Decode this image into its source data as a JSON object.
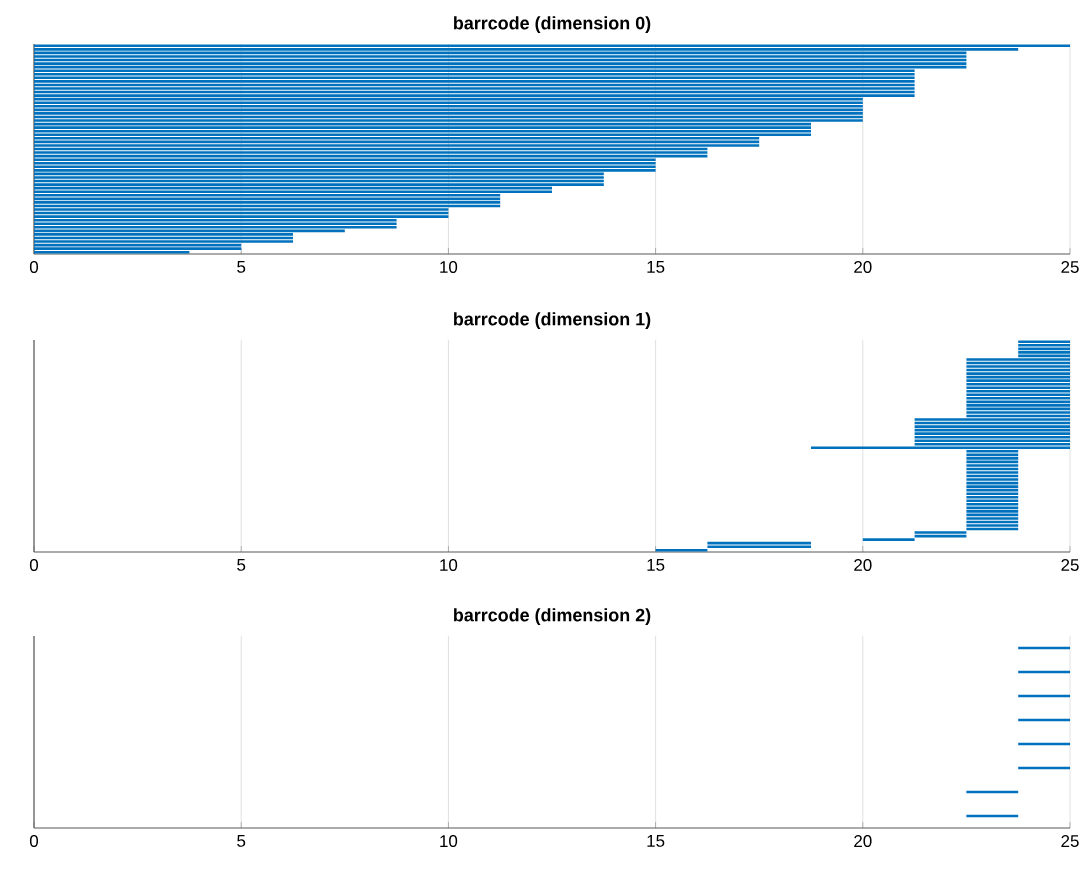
{
  "chart_data": [
    {
      "type": "bar",
      "orientation": "horizontal",
      "title": "barrcode (dimension 0)",
      "color": "#0072bd",
      "xlim": [
        0,
        25
      ],
      "xticks": [
        0,
        5,
        10,
        15,
        20,
        25
      ],
      "grid": "x",
      "tick_labels": "x",
      "categories": [
        null,
        null,
        null,
        null,
        null,
        null,
        null,
        null,
        null,
        null,
        null,
        null,
        null,
        null,
        null,
        null,
        null,
        null,
        null,
        null,
        null,
        null,
        null,
        null,
        null,
        null,
        null,
        null,
        null,
        null,
        null,
        null,
        null,
        null,
        null,
        null,
        null,
        null,
        null,
        null,
        null,
        null,
        null,
        null,
        null,
        null,
        null,
        null,
        null,
        null,
        null,
        null,
        null,
        null,
        null,
        null,
        null,
        null,
        null
      ],
      "values": [
        25,
        23.75,
        22.5,
        22.5,
        22.5,
        22.5,
        22.5,
        21.25,
        21.25,
        21.25,
        21.25,
        21.25,
        21.25,
        21.25,
        21.25,
        20,
        20,
        20,
        20,
        20,
        20,
        20,
        18.75,
        18.75,
        18.75,
        18.75,
        17.5,
        17.5,
        17.5,
        16.25,
        16.25,
        16.25,
        15,
        15,
        15,
        15,
        13.75,
        13.75,
        13.75,
        13.75,
        12.5,
        12.5,
        11.25,
        11.25,
        11.25,
        11.25,
        10,
        10,
        10,
        8.75,
        8.75,
        8.75,
        7.5,
        6.25,
        6.25,
        6.25,
        5,
        5,
        3.75
      ]
    },
    {
      "type": "bar",
      "orientation": "horizontal",
      "title": "barrcode (dimension 1)",
      "color": "#0072bd",
      "xlim": [
        0,
        25
      ],
      "xticks": [
        0,
        5,
        10,
        15,
        20,
        25
      ],
      "grid": "x",
      "tick_labels": "x",
      "categories": [
        null,
        null,
        null,
        null,
        null,
        null,
        null,
        null,
        null,
        null,
        null,
        null,
        null,
        null,
        null,
        null,
        null,
        null,
        null,
        null,
        null,
        null,
        null,
        null,
        null,
        null,
        null,
        null,
        null,
        null,
        null,
        null,
        null,
        null,
        null,
        null,
        null,
        null,
        null,
        null,
        null,
        null,
        null,
        null,
        null,
        null,
        null,
        null,
        null,
        null,
        null,
        null,
        null,
        null,
        null,
        null,
        null,
        null,
        null,
        null
      ],
      "base": [
        23.75,
        23.75,
        23.75,
        23.75,
        23.75,
        22.5,
        22.5,
        22.5,
        22.5,
        22.5,
        22.5,
        22.5,
        22.5,
        22.5,
        22.5,
        22.5,
        22.5,
        22.5,
        22.5,
        22.5,
        22.5,
        22.5,
        21.25,
        21.25,
        21.25,
        21.25,
        21.25,
        21.25,
        21.25,
        21.25,
        18.75,
        22.5,
        22.5,
        22.5,
        22.5,
        22.5,
        22.5,
        22.5,
        22.5,
        22.5,
        22.5,
        22.5,
        22.5,
        22.5,
        22.5,
        22.5,
        22.5,
        22.5,
        22.5,
        22.5,
        22.5,
        22.5,
        22.5,
        22.5,
        21.25,
        21.25,
        20,
        16.25,
        16.25,
        15
      ],
      "values": [
        1.25,
        1.25,
        1.25,
        1.25,
        1.25,
        2.5,
        2.5,
        2.5,
        2.5,
        2.5,
        2.5,
        2.5,
        2.5,
        2.5,
        2.5,
        2.5,
        2.5,
        2.5,
        2.5,
        2.5,
        2.5,
        2.5,
        3.75,
        3.75,
        3.75,
        3.75,
        3.75,
        3.75,
        3.75,
        3.75,
        6.25,
        1.25,
        1.25,
        1.25,
        1.25,
        1.25,
        1.25,
        1.25,
        1.25,
        1.25,
        1.25,
        1.25,
        1.25,
        1.25,
        1.25,
        1.25,
        1.25,
        1.25,
        1.25,
        1.25,
        1.25,
        1.25,
        1.25,
        1.25,
        1.25,
        1.25,
        1.25,
        2.5,
        2.5,
        1.25
      ]
    },
    {
      "type": "bar",
      "orientation": "horizontal",
      "title": "barrcode (dimension 2)",
      "color": "#0072bd",
      "xlim": [
        0,
        25
      ],
      "xticks": [
        0,
        5,
        10,
        15,
        20,
        25
      ],
      "grid": "x",
      "tick_labels": "x",
      "categories": [
        null,
        null,
        null,
        null,
        null,
        null,
        null,
        null
      ],
      "base": [
        23.75,
        23.75,
        23.75,
        23.75,
        23.75,
        23.75,
        22.5,
        22.5
      ],
      "values": [
        1.25,
        1.25,
        1.25,
        1.25,
        1.25,
        1.25,
        1.25,
        1.25
      ]
    }
  ]
}
